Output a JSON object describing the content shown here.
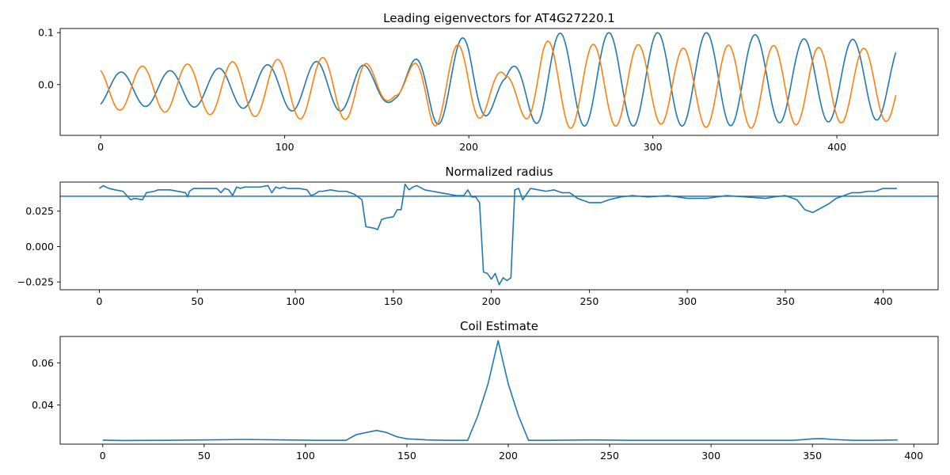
{
  "chart_data": [
    {
      "type": "line",
      "title": "Leading eigenvectors for AT4G27220.1",
      "xlabel": "",
      "ylabel": "",
      "xlim": [
        -22,
        455
      ],
      "ylim": [
        -0.098,
        0.108
      ],
      "xticks": [
        0,
        100,
        200,
        300,
        400
      ],
      "yticks": [
        0.0,
        0.1
      ],
      "ytick_labels": [
        "0.0",
        "0.1"
      ],
      "grid": false,
      "series": [
        {
          "color": "#1f77b4",
          "period": 26.5,
          "phase": 4.5,
          "x": [
            0,
            20,
            40,
            60,
            80,
            100,
            120,
            140,
            160,
            180,
            200,
            220,
            240,
            260,
            280,
            300,
            320,
            340,
            360,
            380,
            400,
            420,
            432
          ],
          "amplitude": [
            0.033,
            0.033,
            0.035,
            0.037,
            0.041,
            0.045,
            0.05,
            0.045,
            0.02,
            0.08,
            0.085,
            0.03,
            0.09,
            0.09,
            0.09,
            0.09,
            0.09,
            0.09,
            0.085,
            0.08,
            0.08,
            0.078,
            0.07
          ],
          "offset": [
            -0.009,
            -0.009,
            -0.008,
            -0.007,
            -0.005,
            -0.005,
            -0.005,
            -0.002,
            -0.012,
            0.004,
            0.006,
            -0.01,
            0.008,
            0.01,
            0.01,
            0.01,
            0.01,
            0.01,
            0.01,
            0.008,
            0.008,
            0.008,
            0.01
          ]
        },
        {
          "color": "#ff7f0e",
          "period": 24.5,
          "phase": -8.0,
          "x": [
            0,
            20,
            40,
            60,
            80,
            100,
            120,
            140,
            160,
            180,
            200,
            220,
            240,
            260,
            280,
            300,
            320,
            340,
            360,
            380,
            400,
            420,
            432
          ],
          "amplitude": [
            0.04,
            0.043,
            0.046,
            0.05,
            0.053,
            0.057,
            0.06,
            0.06,
            0.012,
            0.08,
            0.075,
            0.03,
            0.085,
            0.08,
            0.08,
            0.075,
            0.075,
            0.08,
            0.08,
            0.075,
            0.072,
            0.072,
            0.065
          ],
          "offset": [
            -0.008,
            -0.008,
            -0.008,
            -0.008,
            -0.008,
            -0.008,
            -0.008,
            -0.007,
            -0.012,
            0.0,
            0.0,
            -0.012,
            0.0,
            -0.004,
            0.0,
            0.0,
            -0.006,
            -0.004,
            -0.004,
            -0.002,
            -0.002,
            -0.002,
            -0.004
          ]
        }
      ]
    },
    {
      "type": "line",
      "title": "Normalized radius",
      "xlabel": "",
      "ylabel": "",
      "xlim": [
        -20,
        428
      ],
      "ylim": [
        -0.0305,
        0.0455
      ],
      "xticks": [
        0,
        50,
        100,
        150,
        200,
        250,
        300,
        350,
        400
      ],
      "yticks": [
        -0.025,
        0.0,
        0.025
      ],
      "ytick_labels": [
        "−0.025",
        "0.000",
        "0.025"
      ],
      "grid": false,
      "hline": {
        "y": 0.0355,
        "color": "#1f77b4"
      },
      "series": [
        {
          "color": "#1f77b4",
          "x": [
            0,
            2,
            5,
            8,
            12,
            16,
            18,
            22,
            24,
            28,
            30,
            36,
            44,
            45,
            46,
            48,
            54,
            60,
            62,
            64,
            66,
            68,
            70,
            72,
            74,
            78,
            82,
            86,
            88,
            90,
            92,
            94,
            96,
            98,
            102,
            106,
            108,
            110,
            112,
            114,
            118,
            122,
            126,
            130,
            134,
            136,
            140,
            142,
            144,
            146,
            150,
            152,
            154,
            156,
            158,
            160,
            162,
            166,
            170,
            174,
            178,
            182,
            186,
            188,
            190,
            192,
            194,
            196,
            198,
            200,
            202,
            204,
            206,
            208,
            210,
            212,
            214,
            216,
            220,
            224,
            228,
            232,
            236,
            240,
            244,
            250,
            256,
            260,
            266,
            272,
            280,
            290,
            300,
            310,
            320,
            330,
            340,
            344,
            350,
            356,
            360,
            362,
            364,
            368,
            372,
            376,
            380,
            384,
            388,
            392,
            396,
            400,
            404,
            407
          ],
          "y": [
            0.041,
            0.043,
            0.041,
            0.04,
            0.039,
            0.033,
            0.034,
            0.033,
            0.038,
            0.039,
            0.04,
            0.04,
            0.038,
            0.035,
            0.039,
            0.041,
            0.041,
            0.041,
            0.038,
            0.041,
            0.04,
            0.036,
            0.042,
            0.041,
            0.042,
            0.042,
            0.042,
            0.043,
            0.038,
            0.042,
            0.041,
            0.042,
            0.041,
            0.041,
            0.041,
            0.04,
            0.036,
            0.037,
            0.039,
            0.039,
            0.04,
            0.039,
            0.039,
            0.037,
            0.033,
            0.014,
            0.013,
            0.012,
            0.019,
            0.02,
            0.021,
            0.026,
            0.026,
            0.044,
            0.04,
            0.042,
            0.043,
            0.04,
            0.039,
            0.038,
            0.037,
            0.036,
            0.036,
            0.04,
            0.035,
            0.035,
            0.031,
            -0.018,
            -0.019,
            -0.023,
            -0.019,
            -0.027,
            -0.022,
            -0.024,
            -0.022,
            0.04,
            0.041,
            0.033,
            0.041,
            0.04,
            0.039,
            0.04,
            0.038,
            0.038,
            0.034,
            0.031,
            0.031,
            0.033,
            0.035,
            0.036,
            0.035,
            0.036,
            0.034,
            0.034,
            0.036,
            0.035,
            0.034,
            0.035,
            0.036,
            0.033,
            0.026,
            0.025,
            0.024,
            0.027,
            0.03,
            0.034,
            0.036,
            0.038,
            0.038,
            0.039,
            0.039,
            0.041,
            0.041,
            0.041
          ]
        }
      ]
    },
    {
      "type": "line",
      "title": "Coil Estimate",
      "xlabel": "",
      "ylabel": "",
      "xlim": [
        -21,
        412
      ],
      "ylim": [
        0.0215,
        0.0725
      ],
      "xticks": [
        0,
        50,
        100,
        150,
        200,
        250,
        300,
        350,
        400
      ],
      "yticks": [
        0.04,
        0.06
      ],
      "ytick_labels": [
        "0.04",
        "0.06"
      ],
      "grid": false,
      "series": [
        {
          "color": "#1f77b4",
          "x": [
            0,
            10,
            30,
            50,
            70,
            90,
            105,
            115,
            120,
            125,
            130,
            135,
            140,
            145,
            150,
            160,
            170,
            180,
            185,
            190,
            195,
            200,
            205,
            210,
            220,
            240,
            260,
            280,
            300,
            320,
            340,
            345,
            350,
            355,
            360,
            370,
            380,
            392
          ],
          "y": [
            0.0234,
            0.0232,
            0.0233,
            0.0235,
            0.0237,
            0.0235,
            0.0233,
            0.0233,
            0.0233,
            0.026,
            0.027,
            0.028,
            0.027,
            0.025,
            0.024,
            0.0235,
            0.0233,
            0.0233,
            0.035,
            0.05,
            0.0705,
            0.05,
            0.035,
            0.0233,
            0.0233,
            0.0235,
            0.0233,
            0.0233,
            0.0233,
            0.0233,
            0.0233,
            0.0236,
            0.024,
            0.0241,
            0.0237,
            0.0233,
            0.0233,
            0.0235
          ]
        }
      ]
    }
  ]
}
